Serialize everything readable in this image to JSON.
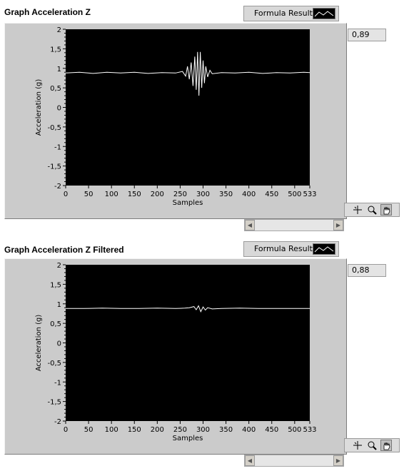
{
  "graphs": [
    {
      "title": "Graph Acceleration Z",
      "legend_label": "Formula Result",
      "digital_value": "0,89",
      "chart_data": {
        "type": "line",
        "xlabel": "Samples",
        "ylabel": "Acceleration (g)",
        "xlim": [
          0,
          533
        ],
        "ylim": [
          -2,
          2
        ],
        "x_ticks": [
          "0",
          "50",
          "100",
          "150",
          "200",
          "250",
          "300",
          "350",
          "400",
          "450",
          "500",
          "533"
        ],
        "y_ticks": [
          "2",
          "1,5",
          "1",
          "0,5",
          "0",
          "-0,5",
          "-1",
          "-1,5",
          "-2"
        ],
        "grid": false,
        "series": [
          {
            "x": [
              0,
              30,
              60,
              90,
              120,
              150,
              180,
              210,
              240,
              255,
              262,
              266,
              270,
              274,
              278,
              282,
              285,
              288,
              291,
              294,
              297,
              300,
              303,
              306,
              310,
              315,
              320,
              340,
              370,
              400,
              430,
              460,
              490,
              520,
              533
            ],
            "y": [
              0.88,
              0.9,
              0.87,
              0.9,
              0.88,
              0.9,
              0.87,
              0.89,
              0.88,
              0.92,
              0.8,
              1.05,
              0.72,
              1.15,
              0.55,
              1.3,
              0.45,
              1.42,
              0.3,
              1.42,
              0.5,
              1.2,
              0.62,
              1.05,
              0.78,
              0.95,
              0.86,
              0.89,
              0.88,
              0.9,
              0.87,
              0.89,
              0.88,
              0.9,
              0.89
            ]
          }
        ]
      }
    },
    {
      "title": "Graph Acceleration Z Filtered",
      "legend_label": "Formula Result",
      "digital_value": "0,88",
      "chart_data": {
        "type": "line",
        "xlabel": "Samples",
        "ylabel": "Acceleration (g)",
        "xlim": [
          0,
          533
        ],
        "ylim": [
          -2,
          2
        ],
        "x_ticks": [
          "0",
          "50",
          "100",
          "150",
          "200",
          "250",
          "300",
          "350",
          "400",
          "450",
          "500",
          "533"
        ],
        "y_ticks": [
          "2",
          "1,5",
          "1",
          "0,5",
          "0",
          "-0,5",
          "-1",
          "-1,5",
          "-2"
        ],
        "grid": false,
        "series": [
          {
            "x": [
              0,
              40,
              80,
              120,
              160,
              200,
              240,
              260,
              270,
              280,
              285,
              290,
              295,
              300,
              305,
              310,
              320,
              340,
              380,
              420,
              460,
              500,
              533
            ],
            "y": [
              0.88,
              0.88,
              0.89,
              0.88,
              0.88,
              0.89,
              0.88,
              0.89,
              0.9,
              0.93,
              0.85,
              0.95,
              0.8,
              0.92,
              0.84,
              0.9,
              0.87,
              0.88,
              0.89,
              0.88,
              0.88,
              0.88,
              0.88
            ]
          }
        ]
      }
    }
  ],
  "icons": {
    "crosshair": "crosshair-tool-icon",
    "zoom": "zoom-tool-icon",
    "pan": "hand-pan-tool-icon"
  },
  "colors": {
    "plot_bg": "#000000",
    "trace": "#ffffff",
    "frame": "#cbcbcb"
  }
}
